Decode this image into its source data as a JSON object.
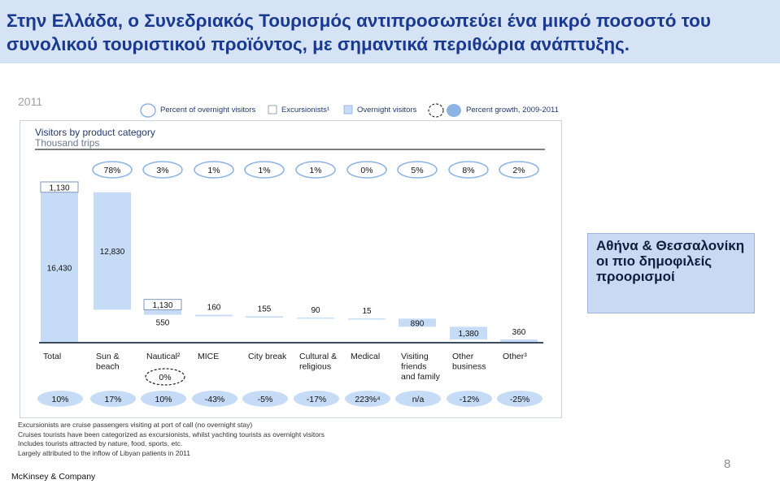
{
  "title": {
    "line1": "Στην Ελλάδα, ο Συνεδριακός Τουρισμός αντιπροσωπεύει ένα μικρό ποσοστό του",
    "line2": "συνολικού τουριστικού προϊόντος, με σημαντικά περιθώρια ανάπτυξης."
  },
  "year_label": "2011",
  "legend": {
    "percent_overnight": "Percent of overnight visitors",
    "excursionists": "Excursionists¹",
    "overnight": "Overnight visitors",
    "growth": "Percent growth, 2009-2011"
  },
  "colors": {
    "overnight_fill": "#c6dcf6",
    "excursionist_fill": "#ffffff",
    "bar_outline": "#7f97b8",
    "title_text": "#1a3a8f",
    "growth_oval": "#c6dcf6"
  },
  "callout_text": "Αθήνα & Θεσσαλονίκη οι πιο δημοφιλείς προορισμοί",
  "notes": [
    "Excursionists are cruise passengers visiting at port of call (no overnight stay)",
    "Cruises tourists have been categorized as excursionists, whilst yachting tourists as overnight visitors",
    "Includes tourists attracted by nature, food, sports, etc.",
    "Largely attributed to the inflow of Libyan patients in 2011"
  ],
  "footer": "McKinsey & Company",
  "page_number": "8",
  "chart_data": {
    "type": "bar",
    "subtype": "waterfall",
    "title": "Visitors by product category",
    "subtitle": "Thousand trips",
    "categories": [
      "Total",
      "Sun & beach",
      "Nautical²",
      "MICE",
      "City break",
      "Cultural & religious",
      "Medical",
      "Visiting friends and family",
      "Other business",
      "Other³"
    ],
    "category_lines": [
      [
        "Total"
      ],
      [
        "Sun &",
        "beach"
      ],
      [
        "Nautical²"
      ],
      [
        "MICE"
      ],
      [
        "City break"
      ],
      [
        "Cultural &",
        "religious"
      ],
      [
        "Medical"
      ],
      [
        "Visiting",
        "friends",
        "and family"
      ],
      [
        "Other",
        "business"
      ],
      [
        "Other³"
      ]
    ],
    "series": [
      {
        "name": "Overnight visitors",
        "values": [
          16430,
          12830,
          550,
          160,
          155,
          90,
          15,
          890,
          1380,
          360
        ]
      },
      {
        "name": "Excursionists¹",
        "values": [
          1130,
          null,
          1130,
          null,
          null,
          null,
          null,
          null,
          null,
          null
        ]
      }
    ],
    "value_labels": {
      "overnight": [
        "16,430",
        "12,830",
        "550",
        "160",
        "155",
        "90",
        "15",
        "890",
        "1,380",
        "360"
      ],
      "excursionists": [
        "1,130",
        "",
        "1,130",
        "",
        "",
        "",
        "",
        "",
        "",
        ""
      ]
    },
    "percent_of_overnight_visitors": [
      "78%",
      "3%",
      "1%",
      "1%",
      "1%",
      "0%",
      "5%",
      "8%",
      "2%"
    ],
    "percent_growth_2009_2011": [
      "10%",
      "17%",
      "10%",
      "-43%",
      "-5%",
      "-17%",
      "223%⁴",
      "n/a",
      "-12%",
      "-25%"
    ],
    "nautical_excursionist_growth": "0%",
    "ylim": [
      0,
      17560
    ]
  }
}
